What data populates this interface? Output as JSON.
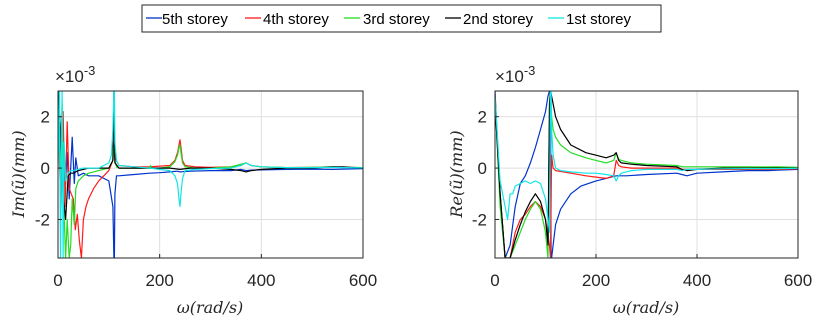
{
  "legend": {
    "position": "top-center",
    "series": [
      {
        "name": "5th storey",
        "color": "#0033cc"
      },
      {
        "name": "4th storey",
        "color": "#ff1a1a"
      },
      {
        "name": "3rd storey",
        "color": "#22dd22"
      },
      {
        "name": "2nd storey",
        "color": "#000000"
      },
      {
        "name": "1st storey",
        "color": "#11e6e6"
      }
    ]
  },
  "chart_data": [
    {
      "type": "line",
      "xlabel": "ω(rad/s)",
      "ylabel": "Im(ũ)(mm)",
      "y_multiplier": "×10",
      "y_multiplier_exp": "-3",
      "xlim": [
        0,
        600
      ],
      "ylim": [
        -3.5,
        3.0
      ],
      "xticks": [
        0,
        200,
        400,
        600
      ],
      "yticks": [
        -2,
        0,
        2
      ],
      "grid": true,
      "series": [
        {
          "name": "5th storey",
          "x": [
            0,
            8,
            12,
            18,
            22,
            28,
            32,
            35,
            40,
            50,
            60,
            80,
            100,
            108,
            110,
            111,
            112,
            115,
            120,
            150,
            180,
            200,
            220,
            235,
            240,
            245,
            260,
            300,
            340,
            360,
            370,
            380,
            400,
            450,
            500,
            540,
            560,
            600
          ],
          "y": [
            3.0,
            0.5,
            -1.6,
            0.6,
            -1.2,
            1.2,
            -0.6,
            0.4,
            -0.3,
            -0.2,
            -0.3,
            -0.3,
            -0.5,
            -1.5,
            -3.5,
            -3.5,
            -1.0,
            -0.3,
            -0.3,
            -0.25,
            -0.2,
            -0.18,
            -0.15,
            -0.12,
            -0.15,
            -0.14,
            -0.12,
            -0.1,
            -0.1,
            -0.05,
            -0.1,
            -0.08,
            -0.07,
            -0.05,
            -0.04,
            -0.05,
            -0.04,
            -0.02
          ]
        },
        {
          "name": "4th storey",
          "x": [
            0,
            6,
            10,
            14,
            18,
            22,
            26,
            30,
            34,
            38,
            42,
            46,
            50,
            55,
            60,
            70,
            80,
            90,
            100,
            108,
            110,
            112,
            120,
            150,
            180,
            220,
            230,
            235,
            238,
            240,
            242,
            245,
            250,
            270,
            300,
            340,
            360,
            370,
            380,
            400,
            450,
            500,
            540,
            560,
            600
          ],
          "y": [
            2.0,
            -1.5,
            2.2,
            -1.5,
            1.8,
            -0.8,
            -1.0,
            -1.2,
            -2.4,
            -1.8,
            -2.8,
            -3.5,
            -2.0,
            -1.5,
            -1.2,
            -0.8,
            -0.5,
            -0.3,
            -0.1,
            0.3,
            1.0,
            0.4,
            0.1,
            0.05,
            0.05,
            0.1,
            0.3,
            0.6,
            0.9,
            1.1,
            0.8,
            0.3,
            0.1,
            0.05,
            0.03,
            0.05,
            0.1,
            0.2,
            0.1,
            0.05,
            0.02,
            0.03,
            0.05,
            0.03,
            0.02
          ]
        },
        {
          "name": "3rd storey",
          "x": [
            0,
            5,
            8,
            12,
            15,
            18,
            22,
            25,
            28,
            32,
            35,
            40,
            45,
            50,
            60,
            80,
            100,
            108,
            110,
            112,
            115,
            120,
            150,
            180,
            182,
            185,
            200,
            220,
            230,
            235,
            238,
            240,
            242,
            245,
            250,
            270,
            300,
            340,
            360,
            370,
            380,
            400,
            450,
            500,
            540,
            560,
            600
          ],
          "y": [
            3.0,
            -0.5,
            2.5,
            -1.8,
            -3.5,
            -2.0,
            -3.5,
            -3.0,
            -1.2,
            -2.2,
            -0.8,
            -0.5,
            -0.4,
            -0.3,
            -0.2,
            -0.1,
            0.0,
            0.3,
            0.8,
            0.3,
            0.05,
            0.0,
            0.0,
            0.0,
            0.1,
            0.0,
            0.0,
            0.05,
            0.25,
            0.5,
            0.8,
            0.9,
            0.6,
            0.2,
            0.05,
            0.0,
            0.0,
            0.05,
            0.15,
            0.2,
            0.1,
            0.05,
            0.02,
            0.03,
            0.05,
            0.03,
            0.02
          ]
        },
        {
          "name": "2nd storey",
          "x": [
            0,
            5,
            10,
            15,
            20,
            25,
            30,
            35,
            40,
            50,
            60,
            80,
            100,
            108,
            110,
            112,
            120,
            150,
            180,
            200,
            220,
            240,
            260,
            300,
            340,
            360,
            370,
            380,
            400,
            450,
            500,
            540,
            560,
            600
          ],
          "y": [
            3.0,
            1.5,
            -1.0,
            -2.0,
            -0.3,
            -0.2,
            -0.2,
            -0.15,
            -0.1,
            -0.05,
            0.0,
            0.0,
            0.0,
            0.3,
            3.0,
            0.2,
            0.0,
            0.0,
            0.0,
            0.0,
            0.0,
            -0.05,
            0.0,
            0.0,
            -0.05,
            -0.1,
            -0.15,
            -0.1,
            -0.05,
            0.0,
            0.0,
            0.05,
            0.05,
            0.0
          ]
        },
        {
          "name": "1st storey",
          "x": [
            0,
            3,
            5,
            8,
            10,
            12,
            15,
            18,
            20,
            25,
            30,
            40,
            50,
            60,
            80,
            100,
            105,
            108,
            110,
            111,
            112,
            115,
            120,
            150,
            180,
            200,
            220,
            230,
            235,
            238,
            240,
            242,
            245,
            250,
            270,
            300,
            340,
            360,
            370,
            380,
            400,
            450,
            500,
            540,
            560,
            600
          ],
          "y": [
            -0.1,
            3.0,
            -3.5,
            3.0,
            -3.5,
            1.0,
            -0.5,
            -0.3,
            -0.2,
            -0.1,
            -0.1,
            -0.05,
            0.0,
            0.0,
            0.0,
            0.2,
            0.5,
            1.5,
            3.0,
            3.0,
            1.0,
            0.3,
            0.1,
            0.05,
            0.0,
            -0.05,
            -0.1,
            -0.3,
            -0.6,
            -1.2,
            -1.5,
            -1.0,
            -0.4,
            -0.1,
            -0.05,
            -0.02,
            0.0,
            0.1,
            0.2,
            0.1,
            0.05,
            0.02,
            0.02,
            0.03,
            0.02,
            0.01
          ]
        }
      ]
    },
    {
      "type": "line",
      "xlabel": "ω(rad/s)",
      "ylabel": "Re(ũ)(mm)",
      "y_multiplier": "×10",
      "y_multiplier_exp": "-3",
      "xlim": [
        0,
        600
      ],
      "ylim": [
        -3.5,
        3.0
      ],
      "xticks": [
        0,
        200,
        400,
        600
      ],
      "yticks": [
        -2,
        0,
        2
      ],
      "grid": true,
      "series": [
        {
          "name": "5th storey",
          "x": [
            0,
            10,
            20,
            30,
            40,
            50,
            60,
            70,
            80,
            90,
            100,
            105,
            108,
            110,
            111,
            112,
            115,
            120,
            130,
            150,
            170,
            200,
            220,
            240,
            260,
            300,
            360,
            370,
            380,
            400,
            450,
            500,
            540,
            560,
            600
          ],
          "y": [
            3.0,
            -1.0,
            -3.5,
            -3.0,
            -1.5,
            -0.6,
            -0.3,
            0.2,
            0.8,
            1.5,
            2.2,
            2.8,
            3.0,
            3.0,
            -3.5,
            -3.5,
            -3.0,
            -2.2,
            -1.6,
            -1.0,
            -0.7,
            -0.5,
            -0.4,
            -0.3,
            -0.3,
            -0.25,
            -0.2,
            -0.25,
            -0.3,
            -0.2,
            -0.15,
            -0.1,
            -0.1,
            -0.08,
            -0.05
          ]
        },
        {
          "name": "4th storey",
          "x": [
            0,
            10,
            20,
            30,
            40,
            50,
            60,
            70,
            80,
            90,
            100,
            108,
            110,
            112,
            115,
            120,
            150,
            180,
            200,
            220,
            235,
            240,
            245,
            250,
            270,
            300,
            360,
            370,
            380,
            400,
            450,
            500,
            540,
            560,
            600
          ],
          "y": [
            2.8,
            -1.0,
            -3.5,
            -3.5,
            -2.5,
            -2.0,
            -1.8,
            -1.5,
            -1.3,
            -1.5,
            -2.0,
            -3.0,
            -3.5,
            0.5,
            0.0,
            -0.1,
            -0.2,
            -0.3,
            -0.35,
            -0.4,
            -0.3,
            0.3,
            0.1,
            0.05,
            0.0,
            0.0,
            0.0,
            -0.05,
            -0.05,
            -0.05,
            -0.05,
            -0.05,
            -0.05,
            -0.05,
            -0.03
          ]
        },
        {
          "name": "3rd storey",
          "x": [
            0,
            10,
            20,
            30,
            40,
            50,
            60,
            70,
            80,
            90,
            100,
            105,
            108,
            110,
            112,
            115,
            120,
            130,
            150,
            180,
            200,
            220,
            235,
            240,
            245,
            250,
            270,
            300,
            360,
            370,
            380,
            400,
            450,
            500,
            540,
            560,
            600
          ],
          "y": [
            2.8,
            -1.5,
            -3.5,
            -3.5,
            -3.0,
            -2.5,
            -2.0,
            -1.6,
            -1.3,
            -1.6,
            -2.5,
            -3.5,
            2.5,
            3.0,
            2.0,
            1.5,
            1.2,
            0.9,
            0.6,
            0.4,
            0.3,
            0.2,
            0.3,
            0.6,
            0.35,
            0.3,
            0.2,
            0.15,
            0.1,
            0.05,
            0.05,
            0.05,
            0.05,
            0.05,
            0.04,
            0.05,
            0.03
          ]
        },
        {
          "name": "2nd storey",
          "x": [
            0,
            10,
            20,
            30,
            40,
            50,
            60,
            70,
            80,
            90,
            100,
            105,
            108,
            110,
            112,
            115,
            120,
            130,
            150,
            180,
            200,
            220,
            235,
            240,
            245,
            250,
            270,
            300,
            360,
            370,
            380,
            400,
            450,
            500,
            540,
            560,
            600
          ],
          "y": [
            2.5,
            -1.0,
            -3.5,
            -3.5,
            -2.8,
            -2.2,
            -1.7,
            -1.3,
            -1.0,
            -1.3,
            -2.0,
            -3.0,
            2.5,
            3.0,
            2.8,
            2.5,
            2.0,
            1.5,
            0.9,
            0.6,
            0.5,
            0.4,
            0.5,
            0.6,
            0.3,
            0.2,
            0.15,
            0.1,
            0.05,
            -0.05,
            -0.1,
            -0.05,
            0.0,
            0.0,
            0.0,
            0.0,
            0.0
          ]
        },
        {
          "name": "1st storey",
          "x": [
            0,
            10,
            20,
            25,
            30,
            35,
            40,
            50,
            60,
            70,
            80,
            90,
            100,
            105,
            108,
            110,
            111,
            112,
            115,
            120,
            130,
            150,
            180,
            200,
            220,
            235,
            240,
            245,
            250,
            270,
            300,
            360,
            370,
            380,
            400,
            450,
            500,
            540,
            560,
            600
          ],
          "y": [
            2.8,
            -0.5,
            -1.5,
            -2.0,
            -1.0,
            -1.0,
            -0.7,
            -0.6,
            -0.5,
            -0.6,
            -0.5,
            -0.6,
            -1.2,
            -2.0,
            -2.5,
            3.0,
            3.0,
            1.5,
            0.5,
            0.0,
            -0.1,
            -0.15,
            -0.2,
            -0.2,
            -0.25,
            -0.3,
            -0.5,
            -0.3,
            -0.2,
            -0.1,
            -0.05,
            -0.05,
            -0.1,
            -0.05,
            -0.05,
            -0.03,
            -0.02,
            -0.02,
            -0.02,
            -0.01
          ]
        }
      ]
    }
  ]
}
